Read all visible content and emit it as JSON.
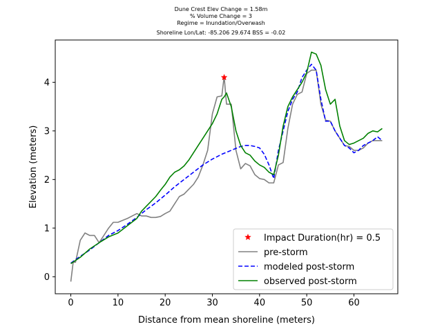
{
  "chart_data": {
    "type": "line",
    "title_lines": [
      "Dune Crest Elev Change = 1.58m",
      "% Volume Change = 3",
      "Regime = Inundation/Overwash",
      "Shoreline Lon/Lat: -85.206 29.674   BSS = -0.02"
    ],
    "xlabel": "Distance from mean shoreline (meters)",
    "ylabel": "Elevation (meters)",
    "xlim": [
      -3.3,
      69.3
    ],
    "ylim": [
      -0.35,
      4.87
    ],
    "xticks": [
      0,
      10,
      20,
      30,
      40,
      50,
      60
    ],
    "yticks": [
      0,
      1,
      2,
      3,
      4
    ],
    "legend_position": "lower-right",
    "grid": false,
    "impact_marker": {
      "name": "Impact Duration(hr) = 0.5",
      "x": 32.5,
      "y": 4.1,
      "color": "#ff0000",
      "marker": "star"
    },
    "series": [
      {
        "name": "pre-storm",
        "color": "#808080",
        "dash": "solid",
        "x": [
          0,
          0.5,
          1,
          2,
          3,
          4,
          5,
          6,
          7,
          8,
          9,
          10,
          11,
          12,
          13,
          14,
          15,
          16,
          17,
          18,
          19,
          20,
          21,
          22,
          23,
          24,
          25,
          26,
          27,
          28,
          29,
          30,
          31,
          32,
          32.5,
          33,
          34,
          35,
          36,
          37,
          38,
          39,
          40,
          41,
          42,
          43,
          44,
          45,
          46,
          47,
          48,
          49,
          50,
          51,
          52,
          53,
          54,
          55,
          56,
          57,
          58,
          59,
          60,
          61,
          62,
          63,
          64,
          65,
          66
        ],
        "y": [
          -0.1,
          0.3,
          0.3,
          0.75,
          0.9,
          0.85,
          0.85,
          0.7,
          0.85,
          1.0,
          1.12,
          1.12,
          1.16,
          1.2,
          1.25,
          1.3,
          1.25,
          1.25,
          1.22,
          1.22,
          1.24,
          1.3,
          1.35,
          1.5,
          1.65,
          1.7,
          1.8,
          1.9,
          2.05,
          2.3,
          2.6,
          3.35,
          3.7,
          3.72,
          4.12,
          3.55,
          3.55,
          2.6,
          2.22,
          2.33,
          2.28,
          2.1,
          2.02,
          2.0,
          1.93,
          1.93,
          2.3,
          2.35,
          3.05,
          3.55,
          3.75,
          3.8,
          4.18,
          4.25,
          4.25,
          3.55,
          3.22,
          3.2,
          3.0,
          2.85,
          2.7,
          2.68,
          2.6,
          2.6,
          2.65,
          2.75,
          2.8,
          2.8,
          2.8
        ]
      },
      {
        "name": "modeled post-storm",
        "color": "#0000ff",
        "dash": "dashed",
        "x": [
          0,
          2,
          4,
          6,
          8,
          10,
          12,
          14,
          16,
          18,
          20,
          22,
          24,
          26,
          28,
          30,
          32,
          34,
          36,
          37,
          38,
          39,
          40,
          41,
          42,
          43,
          44,
          45,
          46,
          47,
          48,
          49,
          50,
          51,
          52,
          53,
          54,
          55,
          56,
          57,
          58,
          59,
          60,
          61,
          62,
          63,
          64,
          65,
          66
        ],
        "y": [
          0.28,
          0.42,
          0.55,
          0.7,
          0.85,
          0.95,
          1.08,
          1.22,
          1.38,
          1.52,
          1.68,
          1.85,
          2.0,
          2.15,
          2.3,
          2.42,
          2.52,
          2.6,
          2.68,
          2.7,
          2.7,
          2.68,
          2.65,
          2.52,
          2.3,
          2.02,
          2.6,
          3.0,
          3.4,
          3.65,
          3.8,
          4.1,
          4.25,
          4.37,
          4.25,
          3.65,
          3.2,
          3.2,
          3.0,
          2.85,
          2.7,
          2.65,
          2.55,
          2.6,
          2.7,
          2.75,
          2.8,
          2.88,
          2.8
        ]
      },
      {
        "name": "observed post-storm",
        "color": "#008000",
        "dash": "solid",
        "x": [
          0,
          2,
          4,
          6,
          8,
          10,
          12,
          14,
          15,
          16,
          17,
          18,
          19,
          20,
          21,
          22,
          23,
          24,
          25,
          26,
          27,
          28,
          29,
          30,
          31,
          32,
          32.5,
          33,
          34,
          35,
          36,
          37,
          38,
          39,
          40,
          41,
          42,
          43,
          44,
          45,
          46,
          47,
          48,
          49,
          50,
          51,
          52,
          53,
          54,
          55,
          56,
          57,
          58,
          59,
          60,
          61,
          62,
          63,
          64,
          65,
          66
        ],
        "y": [
          0.27,
          0.4,
          0.57,
          0.7,
          0.82,
          0.9,
          1.05,
          1.2,
          1.35,
          1.45,
          1.55,
          1.65,
          1.78,
          1.9,
          2.05,
          2.15,
          2.2,
          2.28,
          2.4,
          2.55,
          2.7,
          2.85,
          3.0,
          3.15,
          3.35,
          3.65,
          3.7,
          3.78,
          3.5,
          3.0,
          2.7,
          2.55,
          2.5,
          2.38,
          2.3,
          2.25,
          2.15,
          2.1,
          2.5,
          3.1,
          3.5,
          3.7,
          3.85,
          4.0,
          4.2,
          4.62,
          4.58,
          4.35,
          3.85,
          3.55,
          3.65,
          3.1,
          2.8,
          2.72,
          2.75,
          2.8,
          2.85,
          2.95,
          3.0,
          2.98,
          3.05
        ]
      }
    ]
  }
}
